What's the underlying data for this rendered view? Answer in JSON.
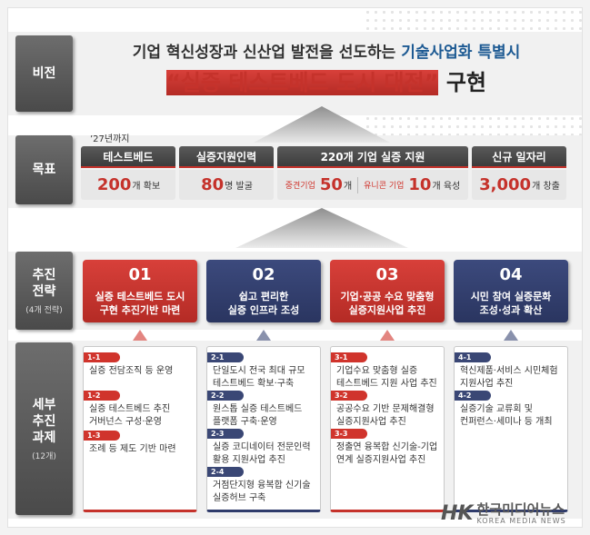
{
  "sections": {
    "vision": "비전",
    "goal": "목표",
    "strategy": {
      "title": "추진\n전략",
      "sub": "(4개 전략)"
    },
    "tasks": {
      "title": "세부\n추진\n과제",
      "sub": "(12개)"
    }
  },
  "vision": {
    "line1_a": "기업 혁신성장과 신산업 발전을 선도하는 ",
    "line1_b": "기술사업화 특별시",
    "line2_quote": "“실증 테스트베드 도시 대전”",
    "line2_tail": " 구현"
  },
  "goal": {
    "since": "’27년까지",
    "items": [
      {
        "head": "테스트베드",
        "value": "200",
        "unit": "개 확보"
      },
      {
        "head": "실증지원인력",
        "value": "80",
        "unit": "명 발굴"
      },
      {
        "head": "220개 기업 실증 지원",
        "a_label": "중견기업",
        "a_value": "50",
        "a_unit": "개",
        "b_label": "유니콘 기업",
        "b_value": "10",
        "b_unit": "개 육성"
      },
      {
        "head": "신규 일자리",
        "value": "3,000",
        "unit": "개 창출"
      }
    ]
  },
  "strategies": [
    {
      "num": "01",
      "title": "실증 테스트베드 도시\n구현 추진기반 마련"
    },
    {
      "num": "02",
      "title": "쉽고 편리한\n실증 인프라 조성"
    },
    {
      "num": "03",
      "title": "기업·공공 수요 맞춤형\n실증지원사업 추진"
    },
    {
      "num": "04",
      "title": "시민 참여 실증문화\n조성·성과 확산"
    }
  ],
  "tasks": [
    [
      {
        "tag": "1-1",
        "text": "실증 전담조직 등 운영"
      },
      {
        "tag": "1-2",
        "text": "실증 테스트베드 추진\n거버넌스 구성·운영"
      },
      {
        "tag": "1-3",
        "text": "조례 등 제도 기반 마련"
      }
    ],
    [
      {
        "tag": "2-1",
        "text": "단일도시 전국 최대 규모\n테스트베드 확보·구축"
      },
      {
        "tag": "2-2",
        "text": "원스톱 실증 테스트베드\n플랫폼 구축·운영"
      },
      {
        "tag": "2-3",
        "text": "실증 코디네이터 전문인력\n활용 지원사업 추진"
      },
      {
        "tag": "2-4",
        "text": "거점단지형 융복합 신기술\n실증허브 구축"
      }
    ],
    [
      {
        "tag": "3-1",
        "text": "기업수요 맞춤형 실증\n테스트베드 지원 사업 추진"
      },
      {
        "tag": "3-2",
        "text": "공공수요 기반 문제해결형\n실증지원사업 추진"
      },
      {
        "tag": "3-3",
        "text": "정출연 융복합 신기술-기업\n연계 실증지원사업 추진"
      }
    ],
    [
      {
        "tag": "4-1",
        "text": "혁신제품·서비스 시민체험\n지원사업 추진"
      },
      {
        "tag": "4-2",
        "text": "실증기술 교류회 및\n컨퍼런스·세미나 등 개최"
      }
    ]
  ],
  "watermark": {
    "mark": "HK",
    "name": "한국미디어뉴스",
    "en": "KOREA MEDIA NEWS"
  },
  "colors": {
    "red": "#c5322b",
    "navy": "#2f3b6b",
    "blue": "#1d5a93"
  }
}
